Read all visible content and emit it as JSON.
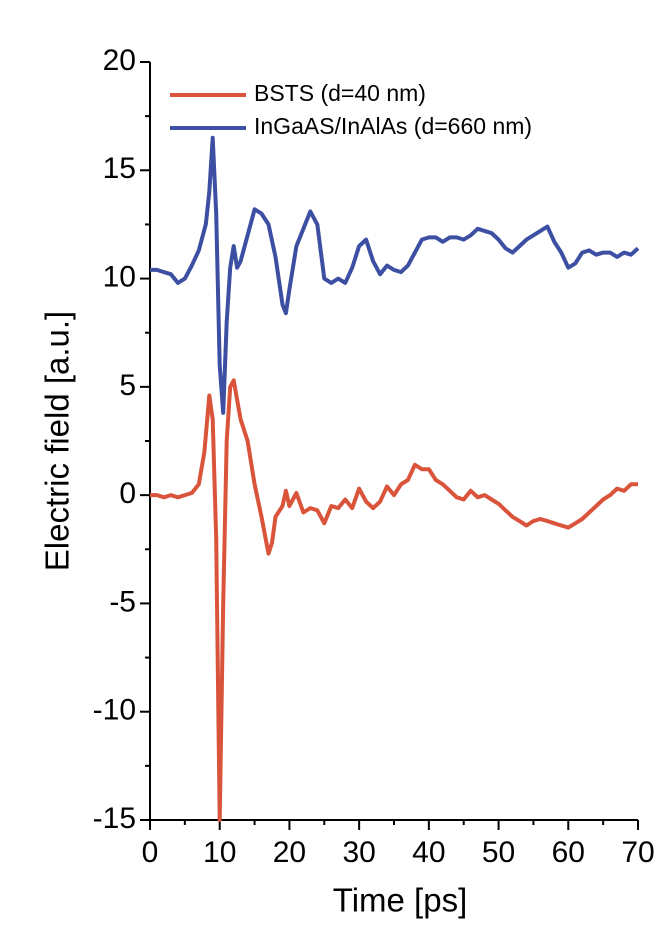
{
  "chart_data": {
    "type": "line",
    "x_label": "Time [ps]",
    "y_label": "Electric field [a.u.]",
    "xlim": [
      0,
      70
    ],
    "xticks": [
      0,
      10,
      20,
      30,
      40,
      50,
      60,
      70
    ],
    "ylim": [
      -15,
      20
    ],
    "yticks": [
      -15,
      -10,
      -5,
      0,
      5,
      10,
      15,
      20
    ],
    "grid": false,
    "legend": "upper left",
    "series": [
      {
        "name": "BSTS (d=40 nm)",
        "color": "#d9543a",
        "x": [
          0,
          1,
          2,
          3,
          4,
          5,
          6,
          7,
          7.8,
          8.5,
          9,
          9.5,
          10,
          10.5,
          11,
          11.5,
          12,
          13,
          14,
          15,
          16,
          17,
          17.5,
          18,
          19,
          19.5,
          20,
          21,
          22,
          23,
          24,
          25,
          26,
          27,
          28,
          29,
          30,
          31,
          32,
          33,
          34,
          35,
          36,
          37,
          38,
          39,
          40,
          41,
          42,
          43,
          44,
          45,
          46,
          47,
          48,
          49,
          50,
          51,
          52,
          53,
          54,
          55,
          56,
          57,
          58,
          59,
          60,
          61,
          62,
          63,
          64,
          65,
          66,
          67,
          68,
          69,
          70
        ],
        "values": [
          0,
          0,
          -0.1,
          0,
          -0.1,
          0,
          0.1,
          0.5,
          2,
          4.6,
          3.5,
          -2,
          -15,
          -5,
          2.5,
          5,
          5.3,
          3.5,
          2.5,
          0.5,
          -1,
          -2.7,
          -2.2,
          -1,
          -0.5,
          0.2,
          -0.5,
          0.1,
          -0.8,
          -0.6,
          -0.7,
          -1.3,
          -0.5,
          -0.6,
          -0.2,
          -0.6,
          0.3,
          -0.3,
          -0.6,
          -0.3,
          0.4,
          0,
          0.5,
          0.7,
          1.4,
          1.2,
          1.2,
          0.7,
          0.5,
          0.2,
          -0.1,
          -0.2,
          0.2,
          -0.1,
          0,
          -0.2,
          -0.4,
          -0.7,
          -1,
          -1.2,
          -1.4,
          -1.2,
          -1.1,
          -1.2,
          -1.3,
          -1.4,
          -1.5,
          -1.3,
          -1.1,
          -0.8,
          -0.5,
          -0.2,
          0,
          0.3,
          0.2,
          0.5,
          0.5
        ]
      },
      {
        "name": "InGaAS/InAlAs (d=660 nm)",
        "color": "#3c4fa2",
        "x": [
          0,
          1,
          2,
          3,
          4,
          5,
          6,
          7,
          8,
          8.5,
          9,
          9.5,
          10,
          10.5,
          11,
          11.5,
          12,
          12.5,
          13,
          14,
          15,
          16,
          17,
          18,
          19,
          19.5,
          20,
          21,
          22,
          23,
          24,
          25,
          26,
          27,
          28,
          29,
          30,
          31,
          32,
          33,
          34,
          35,
          36,
          37,
          38,
          39,
          40,
          41,
          42,
          43,
          44,
          45,
          46,
          47,
          48,
          49,
          50,
          51,
          52,
          53,
          54,
          55,
          56,
          57,
          58,
          59,
          60,
          61,
          62,
          63,
          64,
          65,
          66,
          67,
          68,
          69,
          70
        ],
        "values": [
          10.4,
          10.4,
          10.3,
          10.2,
          9.8,
          10,
          10.6,
          11.3,
          12.5,
          14,
          16.5,
          13,
          6,
          3.8,
          8,
          10.5,
          11.5,
          10.5,
          10.8,
          12,
          13.2,
          13,
          12.5,
          11,
          8.8,
          8.4,
          9.5,
          11.5,
          12.3,
          13.1,
          12.5,
          10,
          9.8,
          10,
          9.8,
          10.5,
          11.5,
          11.8,
          10.8,
          10.2,
          10.6,
          10.4,
          10.3,
          10.6,
          11.2,
          11.8,
          11.9,
          11.9,
          11.7,
          11.9,
          11.9,
          11.8,
          12,
          12.3,
          12.2,
          12.1,
          11.8,
          11.4,
          11.2,
          11.5,
          11.8,
          12,
          12.2,
          12.4,
          11.7,
          11.2,
          10.5,
          10.7,
          11.2,
          11.3,
          11.1,
          11.2,
          11.2,
          11,
          11.2,
          11.1,
          11.4
        ]
      }
    ]
  }
}
